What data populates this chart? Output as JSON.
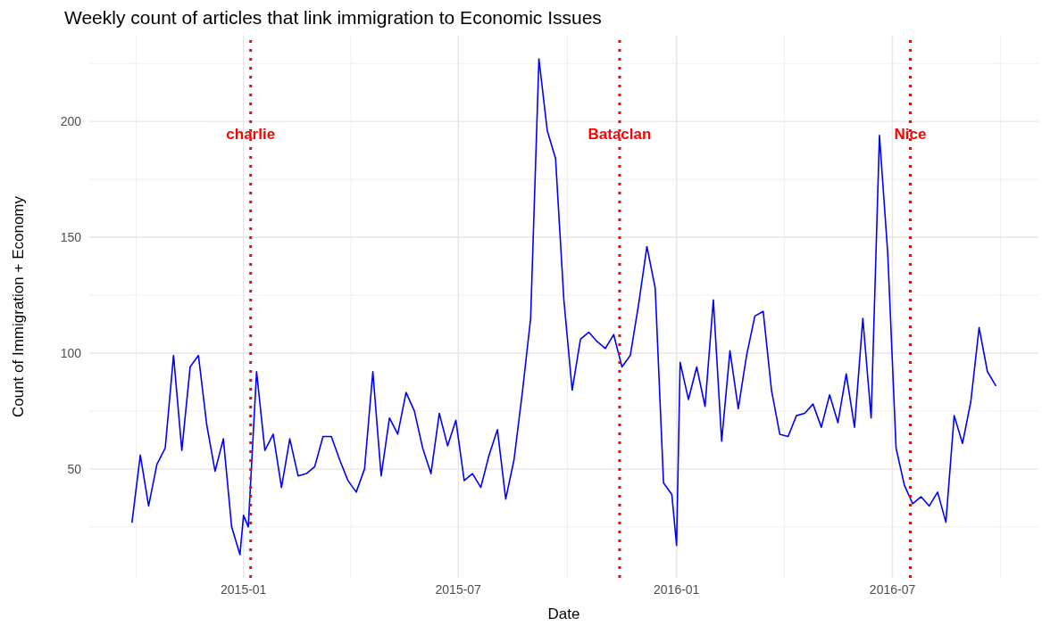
{
  "chart_data": {
    "type": "line",
    "title": "Weekly count of articles that link immigration to Economic Issues",
    "xlabel": "Date",
    "ylabel": "Count of Immigration + Economy",
    "x": [
      "2014-09-29",
      "2014-10-06",
      "2014-10-13",
      "2014-10-20",
      "2014-10-27",
      "2014-11-03",
      "2014-11-10",
      "2014-11-17",
      "2014-11-24",
      "2014-12-01",
      "2014-12-08",
      "2014-12-15",
      "2014-12-22",
      "2014-12-29",
      "2015-01-01",
      "2015-01-05",
      "2015-01-12",
      "2015-01-19",
      "2015-01-26",
      "2015-02-02",
      "2015-02-09",
      "2015-02-16",
      "2015-02-23",
      "2015-03-02",
      "2015-03-09",
      "2015-03-16",
      "2015-03-23",
      "2015-03-30",
      "2015-04-06",
      "2015-04-13",
      "2015-04-20",
      "2015-04-27",
      "2015-05-04",
      "2015-05-11",
      "2015-05-18",
      "2015-05-25",
      "2015-06-01",
      "2015-06-08",
      "2015-06-15",
      "2015-06-22",
      "2015-06-29",
      "2015-07-06",
      "2015-07-13",
      "2015-07-20",
      "2015-07-27",
      "2015-08-03",
      "2015-08-10",
      "2015-08-17",
      "2015-08-24",
      "2015-08-31",
      "2015-09-07",
      "2015-09-14",
      "2015-09-21",
      "2015-09-28",
      "2015-10-05",
      "2015-10-12",
      "2015-10-19",
      "2015-10-26",
      "2015-11-02",
      "2015-11-09",
      "2015-11-16",
      "2015-11-23",
      "2015-11-30",
      "2015-12-07",
      "2015-12-14",
      "2015-12-21",
      "2015-12-28",
      "2016-01-01",
      "2016-01-04",
      "2016-01-11",
      "2016-01-18",
      "2016-01-25",
      "2016-02-01",
      "2016-02-08",
      "2016-02-15",
      "2016-02-22",
      "2016-02-29",
      "2016-03-07",
      "2016-03-14",
      "2016-03-21",
      "2016-03-28",
      "2016-04-04",
      "2016-04-11",
      "2016-04-18",
      "2016-04-25",
      "2016-05-02",
      "2016-05-09",
      "2016-05-16",
      "2016-05-23",
      "2016-05-30",
      "2016-06-06",
      "2016-06-13",
      "2016-06-20",
      "2016-06-27",
      "2016-07-04",
      "2016-07-11",
      "2016-07-18",
      "2016-07-25",
      "2016-08-01",
      "2016-08-08",
      "2016-08-15",
      "2016-08-22",
      "2016-08-29",
      "2016-09-05",
      "2016-09-12",
      "2016-09-19",
      "2016-09-26"
    ],
    "series": [
      {
        "color": "#0000ff",
        "values": [
          27,
          56,
          34,
          52,
          59,
          99,
          58,
          94,
          99,
          69,
          49,
          63,
          25,
          13,
          30,
          25,
          92,
          58,
          65,
          42,
          63,
          47,
          48,
          51,
          64,
          64,
          54,
          45,
          40,
          50,
          92,
          47,
          72,
          65,
          83,
          75,
          59,
          48,
          74,
          60,
          71,
          45,
          48,
          42,
          56,
          67,
          37,
          54,
          83,
          115,
          227,
          196,
          184,
          123,
          84,
          106,
          109,
          105,
          102,
          108,
          94,
          99,
          121,
          146,
          128,
          44,
          39,
          17,
          96,
          80,
          94,
          77,
          123,
          62,
          101,
          76,
          99,
          116,
          118,
          84,
          65,
          64,
          73,
          74,
          78,
          68,
          82,
          70,
          91,
          68,
          115,
          72,
          194,
          143,
          59,
          43,
          35,
          38,
          34,
          40,
          27,
          73,
          61,
          79,
          111,
          92,
          86
        ]
      }
    ],
    "xlim": [
      "2014-08-24",
      "2016-11-01"
    ],
    "ylim": [
      3,
      237
    ],
    "xticks": [
      {
        "value": "2015-01-01",
        "label": "2015-01"
      },
      {
        "value": "2015-07-01",
        "label": "2015-07"
      },
      {
        "value": "2016-01-01",
        "label": "2016-01"
      },
      {
        "value": "2016-07-01",
        "label": "2016-07"
      }
    ],
    "yticks": [
      50,
      100,
      150,
      200
    ],
    "ref_lines": [
      {
        "axis": "x",
        "value": "2015-01-07",
        "label": "charlie",
        "color": "#ff0000",
        "line_style": "dotted"
      },
      {
        "axis": "x",
        "value": "2015-11-14",
        "label": "Bataclan",
        "color": "#ff0000",
        "line_style": "dotted"
      },
      {
        "axis": "x",
        "value": "2016-07-16",
        "label": "Nice",
        "color": "#ff0000",
        "line_style": "dotted"
      }
    ],
    "grid": true,
    "marker": "none",
    "line_style": "solid"
  }
}
